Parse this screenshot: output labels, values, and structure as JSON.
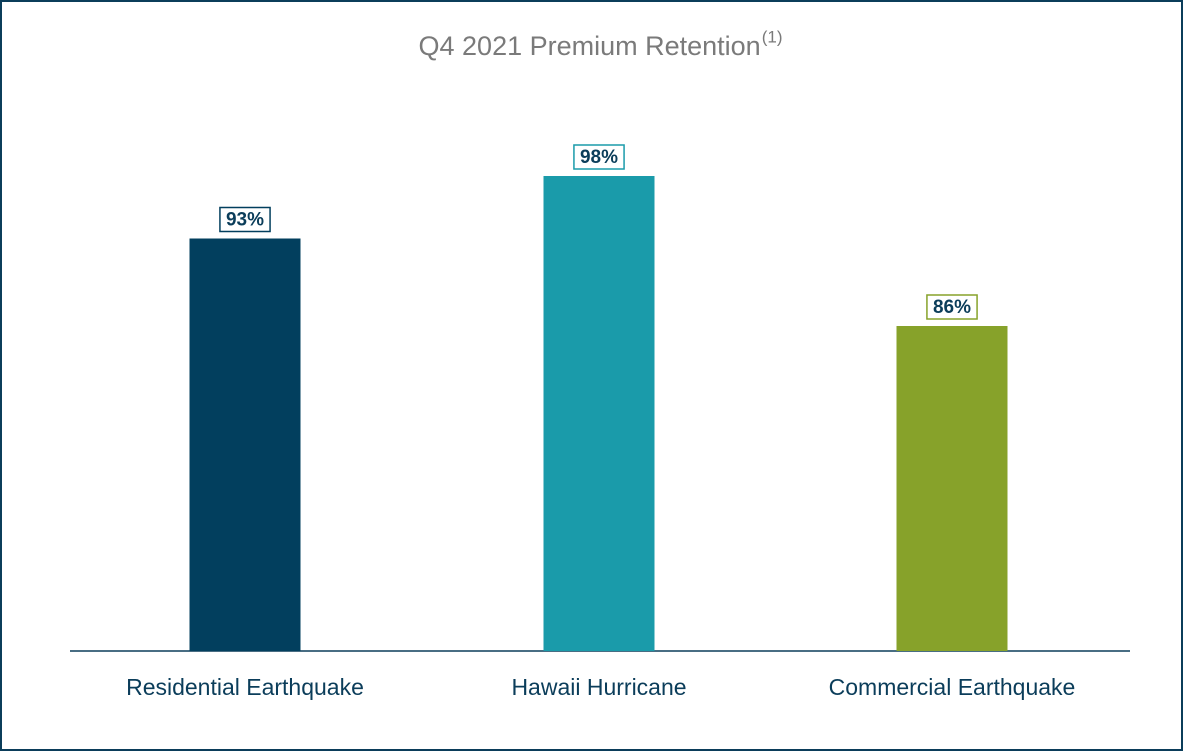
{
  "chart_data": {
    "type": "bar",
    "title": "Q4 2021 Premium Retention",
    "title_superscript": "(1)",
    "categories": [
      "Residential Earthquake",
      "Hawaii Hurricane",
      "Commercial Earthquake"
    ],
    "values": [
      93,
      98,
      86
    ],
    "value_labels": [
      "93%",
      "98%",
      "86%"
    ],
    "colors": [
      "#023f5e",
      "#1a9baa",
      "#87a22a"
    ],
    "ylim": [
      60,
      100
    ],
    "grid": false
  }
}
